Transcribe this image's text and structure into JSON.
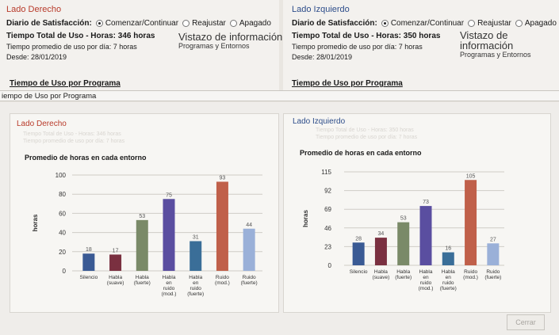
{
  "left": {
    "side_title": "Lado Derecho",
    "diary_label": "Diario de Satisfacción:",
    "radio_options": [
      "Comenzar/Continuar",
      "Reajustar",
      "Apagado"
    ],
    "total_use": "Tiempo Total de Uso - Horas: 346 horas",
    "avg_per_day": "Tiempo promedio de uso por día: 7 horas",
    "since": "Desde: 28/01/2019",
    "overview_title": "Vistazo de información",
    "overview_sub": "Programas y Entornos",
    "section_title": "Tiempo de Uso por Programa"
  },
  "right": {
    "side_title": "Lado Izquierdo",
    "diary_label": "Diario de Satisfacción:",
    "radio_options": [
      "Comenzar/Continuar",
      "Reajustar",
      "Apagado"
    ],
    "total_use": "Tiempo Total de Uso - Horas: 350 horas",
    "avg_per_day": "Tiempo promedio de uso por día: 7 horas",
    "since": "Desde: 28/01/2019",
    "overview_title": "Vistazo de información",
    "overview_sub": "Programas y Entornos",
    "section_title": "Tiempo de Uso por Programa"
  },
  "dialog": {
    "title": "iempo de Uso por Programa",
    "cancel_label": "Cerrar",
    "left_panel_title": "Lado Derecho",
    "right_panel_title": "Lado Izquierdo"
  },
  "colors": {
    "title_red": "#b83a2a",
    "title_blue": "#2d4d8a"
  },
  "chart_data": [
    {
      "type": "bar",
      "title": "Promedio de horas en cada entorno",
      "ylabel": "horas",
      "yticks": [
        0,
        20,
        40,
        60,
        80,
        100
      ],
      "ylim": [
        0,
        100
      ],
      "grid": true,
      "categories": [
        "Silencio",
        "Habla (suave)",
        "Habla (fuerte)",
        "Habla en ruido (mod.)",
        "Habla en ruido (fuerte)",
        "Ruido (mod.)",
        "Ruido (fuerte)"
      ],
      "values": [
        18,
        17,
        53,
        75,
        31,
        93,
        44
      ],
      "colors": [
        "#3a5a94",
        "#7a3040",
        "#7a8a68",
        "#5a4ea0",
        "#3a6e98",
        "#c0604a",
        "#9ab0d8"
      ]
    },
    {
      "type": "bar",
      "title": "Promedio de horas en cada entorno",
      "ylabel": "horas",
      "yticks": [
        0,
        23,
        46,
        69,
        92,
        115
      ],
      "ylim": [
        0,
        115
      ],
      "grid": true,
      "categories": [
        "Silencio",
        "Habla (suave)",
        "Habla (fuerte)",
        "Habla en ruido (mod.)",
        "Habla en ruido (fuerte)",
        "Ruido (mod.)",
        "Ruido (fuerte)"
      ],
      "values": [
        28,
        34,
        53,
        73,
        16,
        105,
        27
      ],
      "colors": [
        "#3a5a94",
        "#7a3040",
        "#7a8a68",
        "#5a4ea0",
        "#3a6e98",
        "#c0604a",
        "#9ab0d8"
      ]
    }
  ]
}
